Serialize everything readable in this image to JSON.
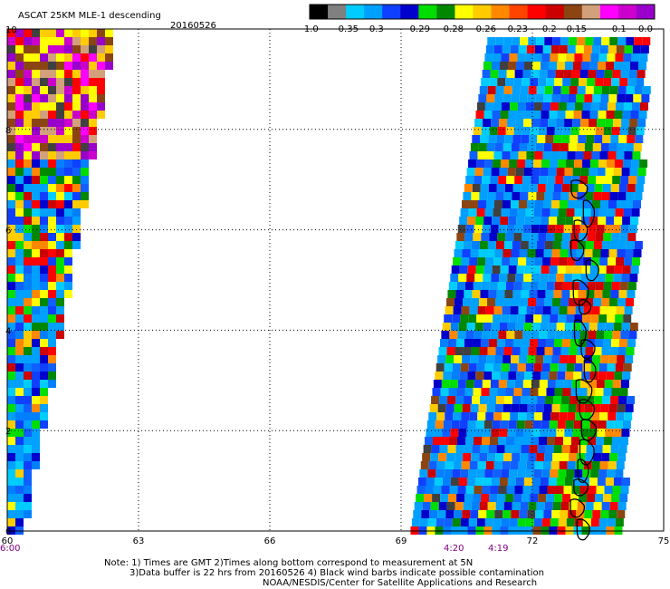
{
  "header": {
    "title": "ASCAT 25KM MLE-1 descending",
    "date": "20160526"
  },
  "colorbar": {
    "labels": [
      "-1.0",
      "-0.35",
      "-0.3",
      "-0.29",
      "-0.28",
      "-0.26",
      "-0.23",
      "-0.2",
      "-0.15",
      "-0.1",
      "0.0"
    ],
    "colors": [
      "#000000",
      "#808080",
      "#00ccff",
      "#00a0ff",
      "#1040ff",
      "#0000cc",
      "#00dd00",
      "#008800",
      "#ffff00",
      "#ffcc00",
      "#ff8800",
      "#ff4400",
      "#ff0000",
      "#cc0000",
      "#8b4513",
      "#d2a07a",
      "#ff00ff",
      "#cc00cc",
      "#9900cc"
    ]
  },
  "chart_data": {
    "type": "heatmap",
    "title": "ASCAT 25KM MLE-1 descending",
    "date": "20160526",
    "xlim": [
      60,
      75
    ],
    "ylim": [
      0,
      10
    ],
    "x_ticks": [
      "60",
      "63",
      "66",
      "69",
      "72",
      "75"
    ],
    "y_ticks": [
      "0",
      "2",
      "4",
      "6",
      "8",
      "10"
    ],
    "grid": true,
    "colorscale": "MLE value, -1.0 to 0.0",
    "swaths": [
      {
        "name": "western swath",
        "lon_range_at_lat0": [
          60.0,
          60.3
        ],
        "lon_range_at_lat10": [
          60.0,
          62.4
        ],
        "time_label": "6:00"
      },
      {
        "name": "eastern swath",
        "lon_range_at_lat0": [
          69.2,
          74.0
        ],
        "lon_range_at_lat10": [
          71.0,
          74.6
        ],
        "time_labels": [
          "4:20",
          "4:19"
        ]
      }
    ],
    "contamination_lon_range": [
      72.8,
      73.7
    ]
  },
  "time_labels": [
    {
      "text": "6:00"
    },
    {
      "text": "4:20"
    },
    {
      "text": "4:19"
    }
  ],
  "notes": [
    "Note: 1) Times are GMT 2)Times along bottom correspond to measurement at 5N",
    "3)Data buffer is 22 hrs from 20160526 4) Black wind barbs indicate possible contamination",
    "NOAA/NESDIS/Center for Satellite Applications and Research"
  ]
}
